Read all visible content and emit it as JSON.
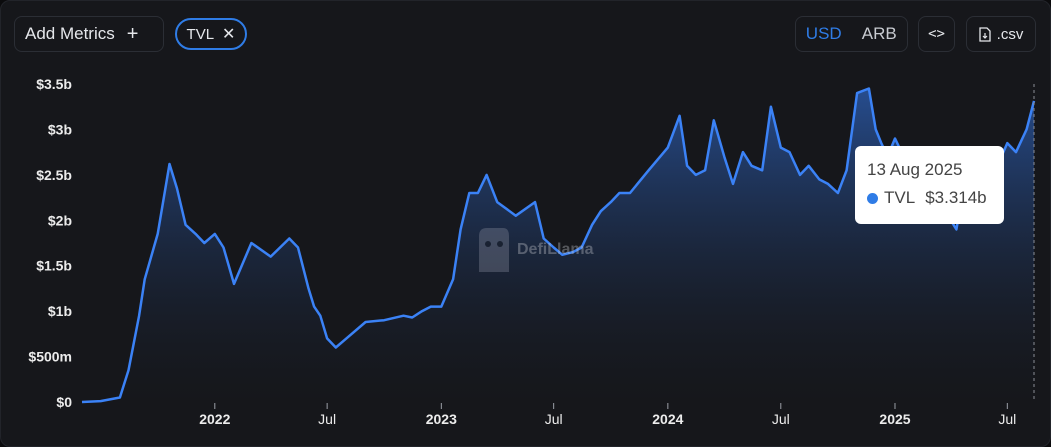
{
  "toolbar": {
    "add_metrics_label": "Add Metrics",
    "metric_chip_label": "TVL",
    "currency_options": [
      "USD",
      "ARB"
    ],
    "currency_selected": "USD",
    "embed_label": "<>",
    "csv_label": ".csv"
  },
  "watermark": {
    "text": "DefiLlama"
  },
  "tooltip": {
    "date": "13 Aug 2025",
    "series": "TVL",
    "value": "$3.314b"
  },
  "colors": {
    "accent": "#2f7ce6",
    "line": "#3b82f6",
    "background": "#16171b"
  },
  "chart_data": {
    "type": "area",
    "grid": false,
    "legend": "none",
    "yticks": [
      "$0",
      "$500m",
      "$1b",
      "$1.5b",
      "$2b",
      "$2.5b",
      "$3b",
      "$3.5b"
    ],
    "ylim": [
      0,
      3.5
    ],
    "xticks": [
      "2022",
      "Jul",
      "2023",
      "Jul",
      "2024",
      "Jul",
      "2025",
      "Jul"
    ],
    "series": [
      {
        "name": "TVL",
        "unit": "billion USD",
        "x": [
          "2021-06-01",
          "2021-07-01",
          "2021-08-01",
          "2021-08-15",
          "2021-09-01",
          "2021-09-10",
          "2021-10-01",
          "2021-10-20",
          "2021-11-01",
          "2021-11-15",
          "2021-12-01",
          "2021-12-15",
          "2022-01-01",
          "2022-01-15",
          "2022-02-01",
          "2022-03-01",
          "2022-04-01",
          "2022-05-01",
          "2022-05-15",
          "2022-06-01",
          "2022-06-10",
          "2022-06-20",
          "2022-07-01",
          "2022-07-15",
          "2022-08-01",
          "2022-09-01",
          "2022-10-01",
          "2022-11-01",
          "2022-11-15",
          "2022-12-01",
          "2022-12-15",
          "2023-01-01",
          "2023-01-20",
          "2023-02-01",
          "2023-02-15",
          "2023-03-01",
          "2023-03-15",
          "2023-04-01",
          "2023-05-01",
          "2023-06-01",
          "2023-06-15",
          "2023-07-01",
          "2023-07-15",
          "2023-08-01",
          "2023-08-15",
          "2023-09-01",
          "2023-09-15",
          "2023-10-01",
          "2023-10-15",
          "2023-11-01",
          "2023-12-01",
          "2024-01-01",
          "2024-01-20",
          "2024-02-01",
          "2024-02-15",
          "2024-03-01",
          "2024-03-15",
          "2024-04-01",
          "2024-04-15",
          "2024-05-01",
          "2024-05-15",
          "2024-06-01",
          "2024-06-15",
          "2024-07-01",
          "2024-07-15",
          "2024-08-01",
          "2024-08-15",
          "2024-09-01",
          "2024-09-15",
          "2024-10-01",
          "2024-10-15",
          "2024-11-01",
          "2024-11-20",
          "2024-12-01",
          "2024-12-10",
          "2024-12-20",
          "2025-01-01",
          "2025-01-15",
          "2025-02-01",
          "2025-02-15",
          "2025-03-01",
          "2025-03-15",
          "2025-04-01",
          "2025-04-10",
          "2025-04-20",
          "2025-05-01",
          "2025-05-15",
          "2025-06-01",
          "2025-06-15",
          "2025-07-01",
          "2025-07-15",
          "2025-08-01",
          "2025-08-13"
        ],
        "values": [
          0.0,
          0.01,
          0.05,
          0.35,
          0.95,
          1.35,
          1.85,
          2.62,
          2.35,
          1.95,
          1.85,
          1.75,
          1.85,
          1.7,
          1.3,
          1.75,
          1.6,
          1.8,
          1.7,
          1.25,
          1.05,
          0.95,
          0.7,
          0.6,
          0.7,
          0.88,
          0.9,
          0.95,
          0.93,
          1.0,
          1.05,
          1.05,
          1.35,
          1.9,
          2.3,
          2.3,
          2.5,
          2.2,
          2.05,
          2.2,
          1.8,
          1.7,
          1.62,
          1.65,
          1.7,
          1.95,
          2.1,
          2.2,
          2.3,
          2.3,
          2.55,
          2.8,
          3.15,
          2.6,
          2.5,
          2.55,
          3.1,
          2.7,
          2.4,
          2.75,
          2.6,
          2.55,
          3.25,
          2.8,
          2.75,
          2.5,
          2.6,
          2.45,
          2.4,
          2.3,
          2.55,
          3.4,
          3.45,
          3.0,
          2.85,
          2.7,
          2.9,
          2.7,
          2.45,
          2.35,
          2.3,
          2.1,
          2.0,
          1.9,
          2.3,
          2.55,
          2.2,
          2.35,
          2.6,
          2.85,
          2.75,
          3.0,
          3.314
        ]
      }
    ]
  }
}
